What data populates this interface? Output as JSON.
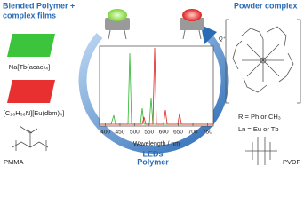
{
  "films": {
    "title": [
      "Blended Polymer +",
      "complex films"
    ],
    "green_film": "Na[Tb(acac)₄]",
    "red_film": "[C₂₆H₅₆N][Eu(dbm)₄]"
  },
  "powder": {
    "title": "Powder complex",
    "counter_ion": "Q⁺",
    "notes": [
      "R = Ph or CH₃",
      "Ln = Eu or Tb"
    ]
  },
  "center": {
    "leds_label": "LEDs",
    "polymer_label": "Polymer",
    "spectrum": {
      "xlabel": "Wavelength / nm",
      "xlim": [
        380,
        770
      ],
      "xticks": [
        400,
        450,
        500,
        550,
        600,
        650,
        700,
        750
      ]
    }
  },
  "polymers": {
    "left": "PMMA",
    "right": "PVDF"
  }
}
